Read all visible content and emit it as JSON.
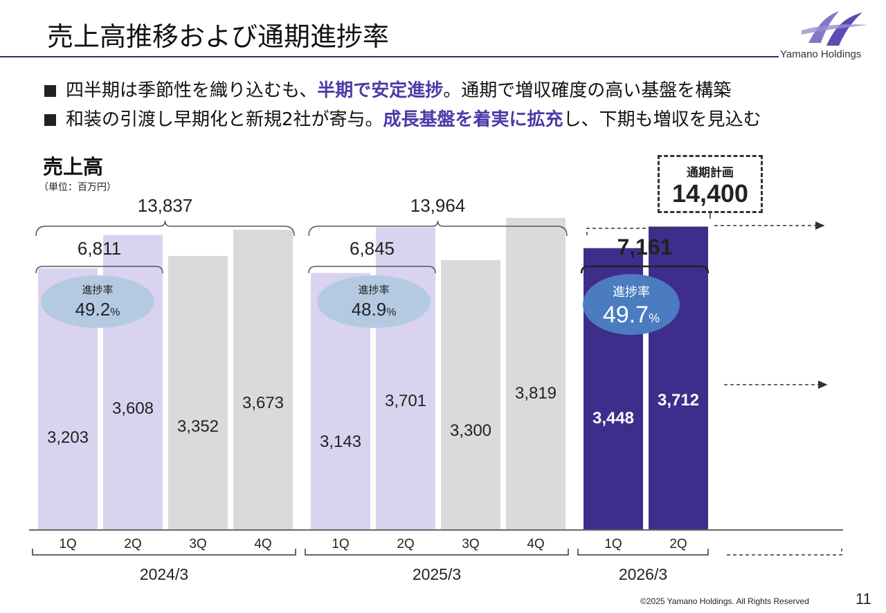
{
  "header": {
    "title": "売上高推移および通期進捗率",
    "brand": "Yamano Holdings"
  },
  "bullets": [
    {
      "pre": "四半期は季節性を織り込むも、",
      "hl": "半期で安定進捗",
      "post": "。通期で増収確度の高い基盤を構築"
    },
    {
      "pre": "和装の引渡し早期化と新規2社が寄与。",
      "hl": "成長基盤を着実に拡充",
      "post": "し、下期も増収を見込む"
    }
  ],
  "chart": {
    "title": "売上高",
    "unit": "（単位：百万円）",
    "plan_label": "通期計画",
    "plan_value": "14,400"
  },
  "chart_data": {
    "type": "bar",
    "title": "売上高",
    "unit": "百万円",
    "ylim": [
      0,
      4200
    ],
    "progress_label": "進捗率",
    "colors": {
      "h1_past": "#d9d3ef",
      "h2_past": "#dadada",
      "current": "#3f2d8c",
      "bubble_past": "#b4cae3",
      "bubble_current": "#4a7cbf"
    },
    "groups": [
      {
        "period": "2024/3",
        "quarters": [
          "1Q",
          "2Q",
          "3Q",
          "4Q"
        ],
        "values": [
          3203,
          3608,
          3352,
          3673
        ],
        "labels": [
          "3,203",
          "3,608",
          "3,352",
          "3,673"
        ],
        "half_total": "6,811",
        "annual_total": "13,837",
        "progress": "49.2",
        "progress_unit": "%"
      },
      {
        "period": "2025/3",
        "quarters": [
          "1Q",
          "2Q",
          "3Q",
          "4Q"
        ],
        "values": [
          3143,
          3701,
          3300,
          3819
        ],
        "labels": [
          "3,143",
          "3,701",
          "3,300",
          "3,819"
        ],
        "half_total": "6,845",
        "annual_total": "13,964",
        "progress": "48.9",
        "progress_unit": "%"
      },
      {
        "period": "2026/3",
        "quarters": [
          "1Q",
          "2Q"
        ],
        "values": [
          3448,
          3712
        ],
        "labels": [
          "3,448",
          "3,712"
        ],
        "half_total": "7,161",
        "annual_plan": "14,400",
        "progress": "49.7",
        "progress_unit": "%"
      }
    ]
  },
  "footer": {
    "copyright": "©2025 Yamano Holdings. All Rights Reserved",
    "page": "11"
  }
}
